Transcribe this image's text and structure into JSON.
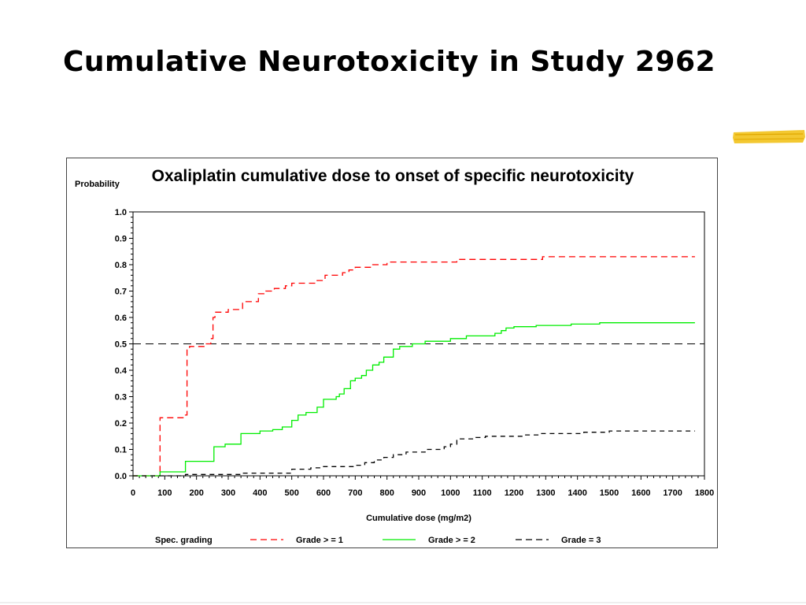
{
  "slide": {
    "title": "Cumulative Neurotoxicity in Study 2962",
    "accent_color": "#f2c21b"
  },
  "chart_data": {
    "type": "line",
    "step": true,
    "title": "Oxaliplatin  cumulative  dose  to  onset  of  specific  neurotoxicity",
    "ylabel": "Probability",
    "xlabel": "Cumulative  dose  (mg/m2)",
    "xlim": [
      0,
      1800
    ],
    "ylim": [
      0,
      1.0
    ],
    "xticks": [
      0,
      100,
      200,
      300,
      400,
      500,
      600,
      700,
      800,
      900,
      1000,
      1100,
      1200,
      1300,
      1400,
      1500,
      1600,
      1700,
      1800
    ],
    "yticks": [
      0.0,
      0.1,
      0.2,
      0.3,
      0.4,
      0.5,
      0.6,
      0.7,
      0.8,
      0.9,
      1.0
    ],
    "ytick_labels": [
      "0.0",
      "0.1",
      "0.2",
      "0.3",
      "0.4",
      "0.5",
      "0.6",
      "0.7",
      "0.8",
      "0.9",
      "1.0"
    ],
    "reference_line": {
      "y": 0.5,
      "style": "dashed",
      "color": "#000000"
    },
    "legend": {
      "title": "Spec.  grading",
      "position": "bottom",
      "entries": [
        {
          "label": "Grade  > =  1",
          "color": "#ff0000",
          "style": "dashed"
        },
        {
          "label": "Grade  > =  2",
          "color": "#00ee00",
          "style": "solid"
        },
        {
          "label": "Grade  =  3",
          "color": "#000000",
          "style": "dashed"
        }
      ]
    },
    "series": [
      {
        "name": "Grade  > =  1",
        "color": "#ff0000",
        "dash": "8,5",
        "points": [
          [
            0,
            0
          ],
          [
            85,
            0
          ],
          [
            85,
            0.22
          ],
          [
            160,
            0.22
          ],
          [
            160,
            0.23
          ],
          [
            170,
            0.23
          ],
          [
            170,
            0.48
          ],
          [
            178,
            0.48
          ],
          [
            178,
            0.49
          ],
          [
            225,
            0.49
          ],
          [
            225,
            0.5
          ],
          [
            245,
            0.5
          ],
          [
            245,
            0.52
          ],
          [
            252,
            0.52
          ],
          [
            252,
            0.6
          ],
          [
            258,
            0.6
          ],
          [
            258,
            0.62
          ],
          [
            300,
            0.62
          ],
          [
            300,
            0.63
          ],
          [
            345,
            0.63
          ],
          [
            345,
            0.66
          ],
          [
            395,
            0.66
          ],
          [
            395,
            0.69
          ],
          [
            418,
            0.69
          ],
          [
            418,
            0.7
          ],
          [
            445,
            0.7
          ],
          [
            445,
            0.71
          ],
          [
            480,
            0.71
          ],
          [
            480,
            0.72
          ],
          [
            500,
            0.72
          ],
          [
            500,
            0.73
          ],
          [
            580,
            0.73
          ],
          [
            580,
            0.74
          ],
          [
            605,
            0.74
          ],
          [
            605,
            0.76
          ],
          [
            660,
            0.76
          ],
          [
            660,
            0.77
          ],
          [
            680,
            0.77
          ],
          [
            680,
            0.78
          ],
          [
            700,
            0.78
          ],
          [
            700,
            0.79
          ],
          [
            755,
            0.79
          ],
          [
            755,
            0.8
          ],
          [
            800,
            0.8
          ],
          [
            800,
            0.81
          ],
          [
            1020,
            0.81
          ],
          [
            1020,
            0.82
          ],
          [
            1290,
            0.82
          ],
          [
            1290,
            0.83
          ],
          [
            1770,
            0.83
          ]
        ]
      },
      {
        "name": "Grade  > =  2",
        "color": "#00ee00",
        "dash": "",
        "points": [
          [
            0,
            0
          ],
          [
            85,
            0
          ],
          [
            85,
            0.015
          ],
          [
            165,
            0.015
          ],
          [
            165,
            0.055
          ],
          [
            255,
            0.055
          ],
          [
            255,
            0.11
          ],
          [
            290,
            0.11
          ],
          [
            290,
            0.12
          ],
          [
            340,
            0.12
          ],
          [
            340,
            0.16
          ],
          [
            400,
            0.16
          ],
          [
            400,
            0.17
          ],
          [
            440,
            0.17
          ],
          [
            440,
            0.175
          ],
          [
            470,
            0.175
          ],
          [
            470,
            0.185
          ],
          [
            500,
            0.185
          ],
          [
            500,
            0.21
          ],
          [
            520,
            0.21
          ],
          [
            520,
            0.23
          ],
          [
            545,
            0.23
          ],
          [
            545,
            0.24
          ],
          [
            580,
            0.24
          ],
          [
            580,
            0.26
          ],
          [
            600,
            0.26
          ],
          [
            600,
            0.29
          ],
          [
            640,
            0.29
          ],
          [
            640,
            0.3
          ],
          [
            650,
            0.3
          ],
          [
            650,
            0.31
          ],
          [
            665,
            0.31
          ],
          [
            665,
            0.33
          ],
          [
            685,
            0.33
          ],
          [
            685,
            0.36
          ],
          [
            700,
            0.36
          ],
          [
            700,
            0.37
          ],
          [
            720,
            0.37
          ],
          [
            720,
            0.38
          ],
          [
            735,
            0.38
          ],
          [
            735,
            0.4
          ],
          [
            755,
            0.4
          ],
          [
            755,
            0.42
          ],
          [
            775,
            0.42
          ],
          [
            775,
            0.43
          ],
          [
            790,
            0.43
          ],
          [
            790,
            0.45
          ],
          [
            820,
            0.45
          ],
          [
            820,
            0.48
          ],
          [
            840,
            0.48
          ],
          [
            840,
            0.49
          ],
          [
            880,
            0.49
          ],
          [
            880,
            0.5
          ],
          [
            920,
            0.5
          ],
          [
            920,
            0.51
          ],
          [
            1000,
            0.51
          ],
          [
            1000,
            0.52
          ],
          [
            1050,
            0.52
          ],
          [
            1050,
            0.53
          ],
          [
            1140,
            0.53
          ],
          [
            1140,
            0.54
          ],
          [
            1160,
            0.54
          ],
          [
            1160,
            0.55
          ],
          [
            1175,
            0.55
          ],
          [
            1175,
            0.56
          ],
          [
            1200,
            0.56
          ],
          [
            1200,
            0.565
          ],
          [
            1270,
            0.565
          ],
          [
            1270,
            0.57
          ],
          [
            1380,
            0.57
          ],
          [
            1380,
            0.575
          ],
          [
            1470,
            0.575
          ],
          [
            1470,
            0.58
          ],
          [
            1770,
            0.58
          ]
        ]
      },
      {
        "name": "Grade  =  3",
        "color": "#000000",
        "dash": "6,5",
        "points": [
          [
            0,
            0
          ],
          [
            165,
            0
          ],
          [
            165,
            0.005
          ],
          [
            340,
            0.005
          ],
          [
            340,
            0.01
          ],
          [
            500,
            0.01
          ],
          [
            500,
            0.025
          ],
          [
            560,
            0.025
          ],
          [
            560,
            0.03
          ],
          [
            600,
            0.03
          ],
          [
            600,
            0.035
          ],
          [
            700,
            0.035
          ],
          [
            700,
            0.04
          ],
          [
            730,
            0.04
          ],
          [
            730,
            0.05
          ],
          [
            760,
            0.05
          ],
          [
            760,
            0.06
          ],
          [
            790,
            0.06
          ],
          [
            790,
            0.07
          ],
          [
            820,
            0.07
          ],
          [
            820,
            0.08
          ],
          [
            860,
            0.08
          ],
          [
            860,
            0.09
          ],
          [
            920,
            0.09
          ],
          [
            920,
            0.1
          ],
          [
            980,
            0.1
          ],
          [
            980,
            0.11
          ],
          [
            1000,
            0.11
          ],
          [
            1000,
            0.12
          ],
          [
            1020,
            0.12
          ],
          [
            1020,
            0.14
          ],
          [
            1080,
            0.14
          ],
          [
            1080,
            0.145
          ],
          [
            1110,
            0.145
          ],
          [
            1110,
            0.15
          ],
          [
            1230,
            0.15
          ],
          [
            1230,
            0.155
          ],
          [
            1280,
            0.155
          ],
          [
            1280,
            0.16
          ],
          [
            1420,
            0.16
          ],
          [
            1420,
            0.165
          ],
          [
            1500,
            0.165
          ],
          [
            1500,
            0.17
          ],
          [
            1770,
            0.17
          ]
        ]
      }
    ]
  }
}
